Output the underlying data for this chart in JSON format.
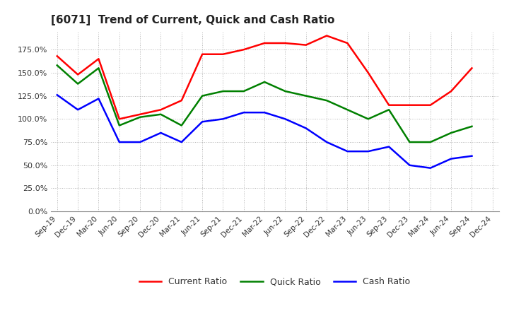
{
  "title": "[6071]  Trend of Current, Quick and Cash Ratio",
  "labels": [
    "Sep-19",
    "Dec-19",
    "Mar-20",
    "Jun-20",
    "Sep-20",
    "Dec-20",
    "Mar-21",
    "Jun-21",
    "Sep-21",
    "Dec-21",
    "Mar-22",
    "Jun-22",
    "Sep-22",
    "Dec-22",
    "Mar-23",
    "Jun-23",
    "Sep-23",
    "Dec-23",
    "Mar-24",
    "Jun-24",
    "Sep-24",
    "Dec-24"
  ],
  "current_ratio": [
    168,
    148,
    165,
    100,
    105,
    110,
    120,
    170,
    170,
    175,
    182,
    182,
    180,
    190,
    182,
    150,
    115,
    115,
    115,
    130,
    155,
    null
  ],
  "quick_ratio": [
    158,
    138,
    155,
    93,
    102,
    105,
    93,
    125,
    130,
    130,
    140,
    130,
    125,
    120,
    110,
    100,
    110,
    75,
    75,
    85,
    92,
    null
  ],
  "cash_ratio": [
    126,
    110,
    122,
    75,
    75,
    85,
    75,
    97,
    100,
    107,
    107,
    100,
    90,
    75,
    65,
    65,
    70,
    50,
    47,
    57,
    60,
    null
  ],
  "current_color": "#FF0000",
  "quick_color": "#008000",
  "cash_color": "#0000FF",
  "ylim": [
    0,
    195
  ],
  "yticks": [
    0,
    25,
    50,
    75,
    100,
    125,
    150,
    175
  ],
  "ytick_labels": [
    "0.0%",
    "25.0%",
    "50.0%",
    "75.0%",
    "100.0%",
    "125.0%",
    "150.0%",
    "175.0%"
  ],
  "bg_color": "#FFFFFF",
  "plot_bg_color": "#FFFFFF",
  "grid_color": "#888888",
  "legend_labels": [
    "Current Ratio",
    "Quick Ratio",
    "Cash Ratio"
  ]
}
